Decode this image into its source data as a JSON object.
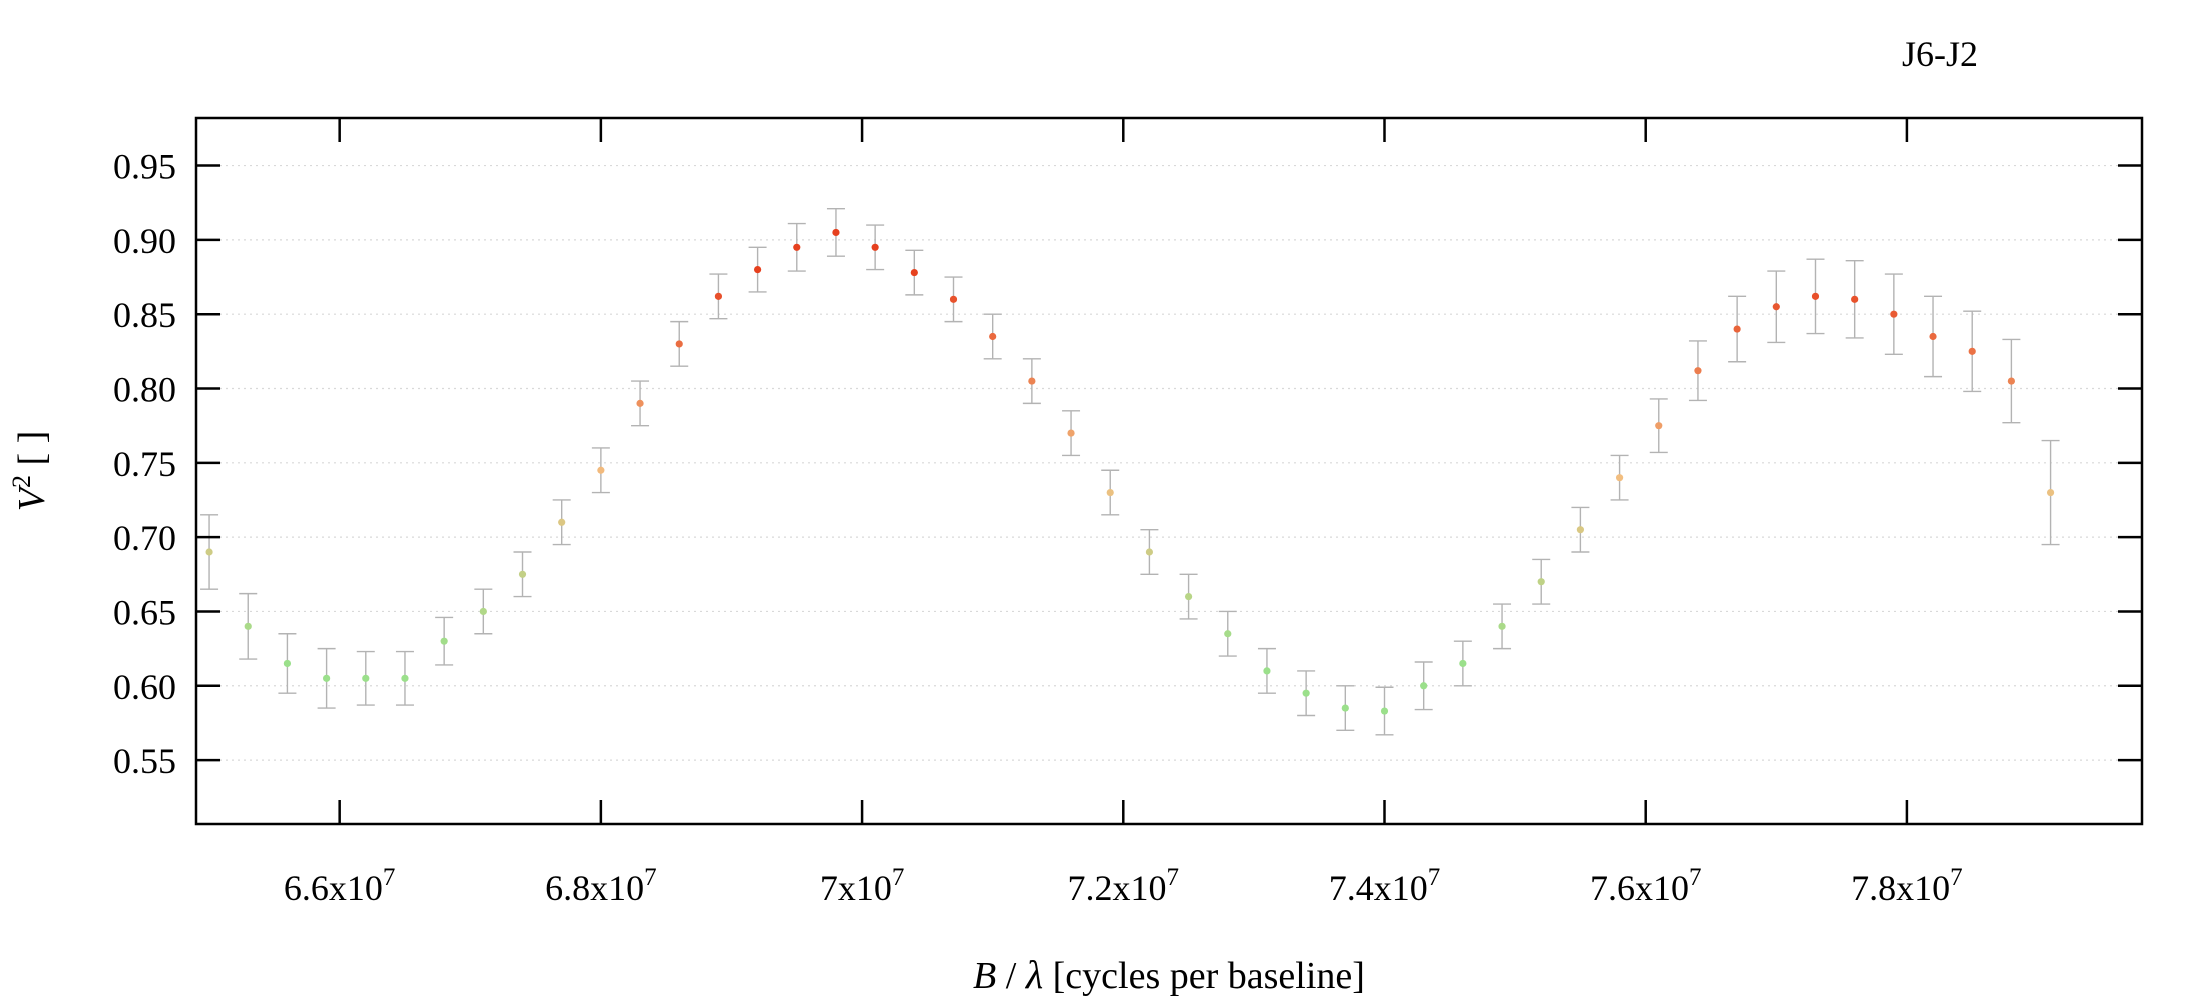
{
  "chart_data": {
    "type": "scatter",
    "title": "J6-J2",
    "xlabel": {
      "var": "B",
      "slash": " / ",
      "sym": "λ",
      "unit": " [cycles per baseline]"
    },
    "ylabel": {
      "var": "V",
      "sup": "2",
      "unit": " [ ]"
    },
    "xlim": [
      64900000,
      79800000
    ],
    "ylim": [
      0.507,
      0.982
    ],
    "grid": "horizontal dotted",
    "legend": "none",
    "x_ticks": [
      {
        "value": 66000000,
        "mantissa": "6.6x10",
        "exp": "7"
      },
      {
        "value": 68000000,
        "mantissa": "6.8x10",
        "exp": "7"
      },
      {
        "value": 70000000,
        "mantissa": "7x10",
        "exp": "7"
      },
      {
        "value": 72000000,
        "mantissa": "7.2x10",
        "exp": "7"
      },
      {
        "value": 74000000,
        "mantissa": "7.4x10",
        "exp": "7"
      },
      {
        "value": 76000000,
        "mantissa": "7.6x10",
        "exp": "7"
      },
      {
        "value": 78000000,
        "mantissa": "7.8x10",
        "exp": "7"
      }
    ],
    "y_ticks": [
      {
        "value": 0.55,
        "label": "0.55"
      },
      {
        "value": 0.6,
        "label": "0.60"
      },
      {
        "value": 0.65,
        "label": "0.65"
      },
      {
        "value": 0.7,
        "label": "0.70"
      },
      {
        "value": 0.75,
        "label": "0.75"
      },
      {
        "value": 0.8,
        "label": "0.80"
      },
      {
        "value": 0.85,
        "label": "0.85"
      },
      {
        "value": 0.9,
        "label": "0.90"
      },
      {
        "value": 0.95,
        "label": "0.95"
      }
    ],
    "colors": {
      "error_bar": "#b3b3b3",
      "low": "#9be08b",
      "mid": "#f2be80",
      "high": "#e6401e"
    },
    "series": [
      {
        "x": [
          65000000,
          65300000,
          65600000,
          65900000,
          66200000,
          66500000,
          66800000,
          67100000,
          67400000,
          67700000,
          68000000,
          68300000,
          68600000,
          68900000,
          69200000,
          69500000,
          69800000,
          70100000,
          70400000,
          70700000,
          71000000,
          71300000,
          71600000,
          71900000,
          72200000,
          72500000,
          72800000,
          73100000,
          73400000,
          73700000,
          74000000,
          74300000,
          74600000,
          74900000,
          75200000,
          75500000,
          75800000,
          76100000,
          76400000,
          76700000,
          77000000,
          77300000,
          77600000,
          77900000,
          78200000,
          78500000,
          78800000,
          79100000
        ],
        "y": [
          0.69,
          0.64,
          0.615,
          0.605,
          0.605,
          0.605,
          0.63,
          0.65,
          0.675,
          0.71,
          0.745,
          0.79,
          0.83,
          0.862,
          0.88,
          0.895,
          0.905,
          0.895,
          0.878,
          0.86,
          0.835,
          0.805,
          0.77,
          0.73,
          0.69,
          0.66,
          0.635,
          0.61,
          0.595,
          0.585,
          0.583,
          0.6,
          0.615,
          0.64,
          0.67,
          0.705,
          0.74,
          0.775,
          0.812,
          0.84,
          0.855,
          0.862,
          0.86,
          0.85,
          0.835,
          0.825,
          0.805,
          0.73
        ],
        "error": [
          0.025,
          0.022,
          0.02,
          0.02,
          0.018,
          0.018,
          0.016,
          0.015,
          0.015,
          0.015,
          0.015,
          0.015,
          0.015,
          0.015,
          0.015,
          0.016,
          0.016,
          0.015,
          0.015,
          0.015,
          0.015,
          0.015,
          0.015,
          0.015,
          0.015,
          0.015,
          0.015,
          0.015,
          0.015,
          0.015,
          0.016,
          0.016,
          0.015,
          0.015,
          0.015,
          0.015,
          0.015,
          0.018,
          0.02,
          0.022,
          0.024,
          0.025,
          0.026,
          0.027,
          0.027,
          0.027,
          0.028,
          0.035
        ]
      }
    ]
  }
}
